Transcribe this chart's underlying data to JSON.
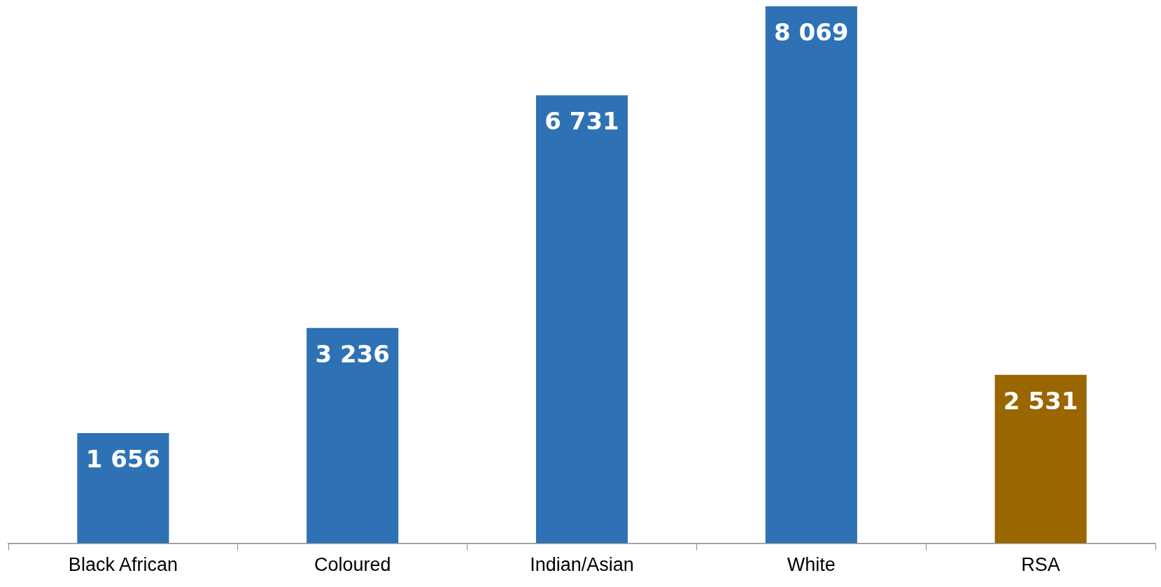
{
  "chart_data": {
    "type": "bar",
    "categories": [
      "Black African",
      "Coloured",
      "Indian/Asian",
      "White",
      "RSA"
    ],
    "values": [
      1656,
      3236,
      6731,
      8069,
      2531
    ],
    "colors": [
      "#2e72b5",
      "#2e72b5",
      "#2e72b5",
      "#2e72b5",
      "#996600"
    ],
    "value_labels": [
      "1 656",
      "3 236",
      "6 731",
      "8 069",
      "2 531"
    ],
    "grid": false,
    "legend": false
  }
}
